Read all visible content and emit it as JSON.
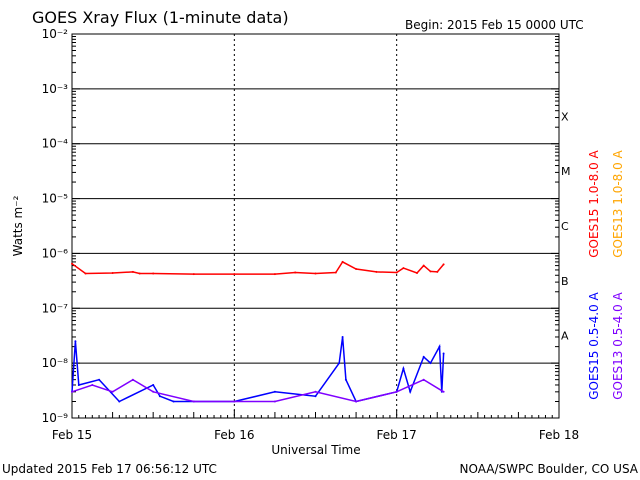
{
  "header": {
    "title": "GOES Xray Flux (1-minute data)",
    "begin": "Begin:  2015 Feb 15 0000 UTC"
  },
  "footer": {
    "updated": "Updated 2015 Feb 17 06:56:12 UTC",
    "credit": "NOAA/SWPC Boulder, CO USA"
  },
  "chart_data": {
    "type": "line",
    "title": "GOES Xray Flux (1-minute data)",
    "xlabel": "Universal Time",
    "ylabel": "Watts m⁻²",
    "yscale": "log",
    "ylim": [
      1e-09,
      0.01
    ],
    "xlim": [
      "2015-02-15 00:00",
      "2015-02-18 00:00"
    ],
    "x_ticks": [
      "Feb 15",
      "Feb 16",
      "Feb 17",
      "Feb 18"
    ],
    "y_ticks": [
      "10⁻⁹",
      "10⁻⁸",
      "10⁻⁷",
      "10⁻⁶",
      "10⁻⁵",
      "10⁻⁴",
      "10⁻³",
      "10⁻²"
    ],
    "flare_classes": [
      "A",
      "B",
      "C",
      "M",
      "X"
    ],
    "grid": true,
    "series": [
      {
        "name": "GOES15 1.0-8.0 A",
        "color": "#ff0000",
        "x": [
          "2015-02-15 00:00",
          "2015-02-15 02:00",
          "2015-02-15 06:00",
          "2015-02-15 09:00",
          "2015-02-15 10:00",
          "2015-02-15 12:00",
          "2015-02-15 18:00",
          "2015-02-16 00:00",
          "2015-02-16 06:00",
          "2015-02-16 09:00",
          "2015-02-16 12:00",
          "2015-02-16 15:00",
          "2015-02-16 16:00",
          "2015-02-16 18:00",
          "2015-02-16 21:00",
          "2015-02-17 00:00",
          "2015-02-17 01:00",
          "2015-02-17 03:00",
          "2015-02-17 04:00",
          "2015-02-17 05:00",
          "2015-02-17 06:00",
          "2015-02-17 06:56"
        ],
        "values": [
          6.5e-07,
          4.3e-07,
          4.4e-07,
          4.6e-07,
          4.3e-07,
          4.3e-07,
          4.2e-07,
          4.2e-07,
          4.2e-07,
          4.5e-07,
          4.3e-07,
          4.5e-07,
          7e-07,
          5.2e-07,
          4.6e-07,
          4.5e-07,
          5.4e-07,
          4.4e-07,
          6e-07,
          4.7e-07,
          4.6e-07,
          6.3e-07
        ]
      },
      {
        "name": "GOES13 1.0-8.0 A",
        "color": "#ffa500",
        "x": [],
        "values": []
      },
      {
        "name": "GOES15 0.5-4.0 A",
        "color": "#0000ff",
        "x": [
          "2015-02-15 00:00",
          "2015-02-15 00:30",
          "2015-02-15 01:00",
          "2015-02-15 04:00",
          "2015-02-15 07:00",
          "2015-02-15 12:00",
          "2015-02-15 13:00",
          "2015-02-15 15:00",
          "2015-02-15 18:00",
          "2015-02-16 00:00",
          "2015-02-16 06:00",
          "2015-02-16 12:00",
          "2015-02-16 15:30",
          "2015-02-16 16:00",
          "2015-02-16 16:30",
          "2015-02-16 18:00",
          "2015-02-17 00:00",
          "2015-02-17 01:00",
          "2015-02-17 02:00",
          "2015-02-17 04:00",
          "2015-02-17 05:00",
          "2015-02-17 06:20",
          "2015-02-17 06:40",
          "2015-02-17 06:56"
        ],
        "values": [
          3e-09,
          2.5e-08,
          4e-09,
          5e-09,
          2e-09,
          4e-09,
          2.5e-09,
          2e-09,
          2e-09,
          2e-09,
          3e-09,
          2.5e-09,
          1e-08,
          3e-08,
          5e-09,
          2e-09,
          3e-09,
          8e-09,
          3e-09,
          1.3e-08,
          1e-08,
          2e-08,
          3e-09,
          1.5e-08
        ]
      },
      {
        "name": "GOES13 0.5-4.0 A",
        "color": "#7f00ff",
        "x": [
          "2015-02-15 00:00",
          "2015-02-15 03:00",
          "2015-02-15 06:00",
          "2015-02-15 09:00",
          "2015-02-15 12:00",
          "2015-02-15 18:00",
          "2015-02-16 00:00",
          "2015-02-16 06:00",
          "2015-02-16 12:00",
          "2015-02-16 18:00",
          "2015-02-17 00:00",
          "2015-02-17 04:00",
          "2015-02-17 06:56"
        ],
        "values": [
          3e-09,
          4e-09,
          3e-09,
          5e-09,
          3e-09,
          2e-09,
          2e-09,
          2e-09,
          3e-09,
          2e-09,
          3e-09,
          5e-09,
          3e-09
        ]
      }
    ]
  }
}
